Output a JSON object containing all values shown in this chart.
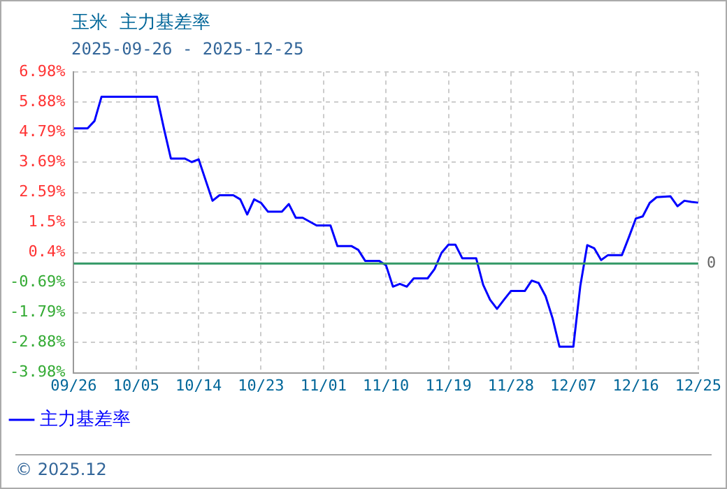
{
  "chart_data": {
    "type": "line",
    "title": "玉米  主力基差率",
    "subtitle": "2025-09-26 - 2025-12-25",
    "x": [
      "2025-09-26",
      "2025-09-28",
      "2025-09-29",
      "2025-09-30",
      "2025-10-08",
      "2025-10-09",
      "2025-10-10",
      "2025-10-12",
      "2025-10-13",
      "2025-10-14",
      "2025-10-16",
      "2025-10-17",
      "2025-10-19",
      "2025-10-20",
      "2025-10-21",
      "2025-10-22",
      "2025-10-23",
      "2025-10-24",
      "2025-10-26",
      "2025-10-27",
      "2025-10-28",
      "2025-10-29",
      "2025-10-31",
      "2025-11-02",
      "2025-11-03",
      "2025-11-05",
      "2025-11-06",
      "2025-11-07",
      "2025-11-09",
      "2025-11-10",
      "2025-11-11",
      "2025-11-12",
      "2025-11-13",
      "2025-11-14",
      "2025-11-16",
      "2025-11-17",
      "2025-11-18",
      "2025-11-19",
      "2025-11-20",
      "2025-11-21",
      "2025-11-23",
      "2025-11-24",
      "2025-11-25",
      "2025-11-26",
      "2025-11-27",
      "2025-11-28",
      "2025-11-30",
      "2025-12-01",
      "2025-12-02",
      "2025-12-03",
      "2025-12-04",
      "2025-12-05",
      "2025-12-07",
      "2025-12-08",
      "2025-12-09",
      "2025-12-10",
      "2025-12-11",
      "2025-12-12",
      "2025-12-14",
      "2025-12-15",
      "2025-12-16",
      "2025-12-17",
      "2025-12-18",
      "2025-12-19",
      "2025-12-21",
      "2025-12-22",
      "2025-12-23",
      "2025-12-24",
      "2025-12-25"
    ],
    "series": [
      {
        "name": "主力基差率",
        "color": "#0000ff",
        "values": [
          4.93,
          4.93,
          5.2,
          6.08,
          6.08,
          4.92,
          3.83,
          3.83,
          3.7,
          3.8,
          2.29,
          2.49,
          2.49,
          2.34,
          1.79,
          2.34,
          2.21,
          1.89,
          1.89,
          2.17,
          1.67,
          1.67,
          1.39,
          1.39,
          0.64,
          0.64,
          0.5,
          0.1,
          0.1,
          -0.06,
          -0.84,
          -0.74,
          -0.84,
          -0.54,
          -0.54,
          -0.2,
          0.39,
          0.69,
          0.69,
          0.19,
          0.19,
          -0.77,
          -1.32,
          -1.65,
          -1.32,
          -1.0,
          -1.0,
          -0.62,
          -0.71,
          -1.19,
          -1.99,
          -3.03,
          -3.03,
          -0.82,
          0.67,
          0.56,
          0.13,
          0.31,
          0.31,
          0.96,
          1.64,
          1.72,
          2.21,
          2.42,
          2.45,
          2.09,
          2.29,
          2.25,
          2.22
        ]
      }
    ],
    "xlim": [
      "2025-09-26",
      "2025-12-25"
    ],
    "xticks": [
      {
        "value": "2025-09-26",
        "label": "09/26"
      },
      {
        "value": "2025-10-05",
        "label": "10/05"
      },
      {
        "value": "2025-10-14",
        "label": "10/14"
      },
      {
        "value": "2025-10-23",
        "label": "10/23"
      },
      {
        "value": "2025-11-01",
        "label": "11/01"
      },
      {
        "value": "2025-11-10",
        "label": "11/10"
      },
      {
        "value": "2025-11-19",
        "label": "11/19"
      },
      {
        "value": "2025-11-28",
        "label": "11/28"
      },
      {
        "value": "2025-12-07",
        "label": "12/07"
      },
      {
        "value": "2025-12-16",
        "label": "12/16"
      },
      {
        "value": "2025-12-25",
        "label": "12/25"
      }
    ],
    "ylim": [
      -3.98,
      6.98
    ],
    "yticks": [
      {
        "value": -3.98,
        "label": "-3.98%"
      },
      {
        "value": -2.88,
        "label": "-2.88%"
      },
      {
        "value": -1.79,
        "label": "-1.79%"
      },
      {
        "value": -0.69,
        "label": "-0.69%"
      },
      {
        "value": 0.4,
        "label": "0.4%"
      },
      {
        "value": 1.5,
        "label": "1.5%"
      },
      {
        "value": 2.59,
        "label": "2.59%"
      },
      {
        "value": 3.69,
        "label": "3.69%"
      },
      {
        "value": 4.79,
        "label": "4.79%"
      },
      {
        "value": 5.88,
        "label": "5.88%"
      },
      {
        "value": 6.98,
        "label": "6.98%"
      }
    ],
    "ref_lines": [
      {
        "axis": "y",
        "value": 0,
        "label": "0",
        "color": "#339966"
      }
    ],
    "annotations": [
      "© 2025.12"
    ],
    "grid": true,
    "legend": "bottom",
    "marker": "none",
    "line_style": "solid"
  }
}
